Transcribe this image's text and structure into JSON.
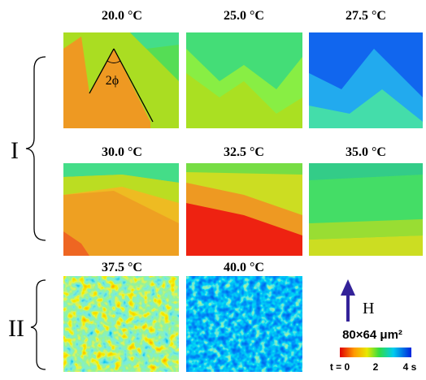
{
  "panels": [
    {
      "title": "20.0 °C"
    },
    {
      "title": "25.0 °C"
    },
    {
      "title": "27.5 °C"
    },
    {
      "title": "30.0 °C"
    },
    {
      "title": "32.5 °C"
    },
    {
      "title": "35.0 °C"
    },
    {
      "title": "37.5 °C"
    },
    {
      "title": "40.0 °C"
    }
  ],
  "angle_label": "2ϕ",
  "groups": [
    "I",
    "II"
  ],
  "field_label": "H",
  "scale_label": "80×64 μm²",
  "colorbar": {
    "labels": [
      "t = 0",
      "2",
      "4 s"
    ]
  }
}
